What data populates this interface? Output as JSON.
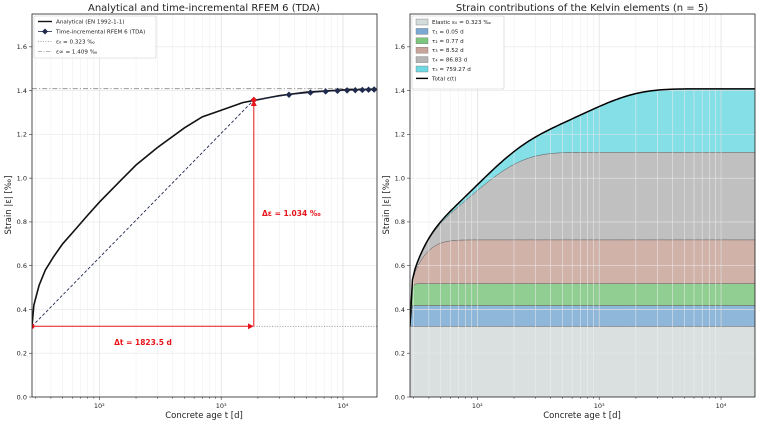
{
  "chart_data": [
    {
      "type": "line",
      "title": "Analytical and time-incremental RFEM 6 (TDA)",
      "xlabel": "Concrete age  t  [d]",
      "ylabel": "Strain  |ε|  [‰]",
      "xscale": "log",
      "xlim": [
        28,
        19000
      ],
      "ylim": [
        0.0,
        1.75
      ],
      "grid": true,
      "legend_position": "top-left",
      "x_tick_labels": [
        "10²",
        "10³",
        "10⁴"
      ],
      "y_tick_labels": [
        "0.0",
        "0.2",
        "0.4",
        "0.6",
        "0.8",
        "1.0",
        "1.2",
        "1.4",
        "1.6"
      ],
      "series": [
        {
          "name": "Analytical (EN 1992-1-1)",
          "style": "solid",
          "color": "#111111",
          "x": [
            28,
            29,
            32,
            36,
            42,
            50,
            60,
            80,
            100,
            150,
            200,
            300,
            500,
            700,
            1000,
            1500,
            1852,
            3000,
            5000,
            10000,
            19000
          ],
          "y": [
            0.323,
            0.42,
            0.51,
            0.58,
            0.64,
            0.7,
            0.75,
            0.83,
            0.89,
            0.99,
            1.06,
            1.14,
            1.23,
            1.28,
            1.31,
            1.345,
            1.355,
            1.377,
            1.393,
            1.403,
            1.406
          ]
        },
        {
          "name": "Time-incremental RFEM 6 (TDA)",
          "style": "markers",
          "color": "#1f2a4d",
          "x": [
            1852,
            3600,
            5400,
            7200,
            9000,
            10800,
            12600,
            14400,
            16200,
            18000
          ],
          "y": [
            1.357,
            1.381,
            1.391,
            1.396,
            1.399,
            1.401,
            1.402,
            1.403,
            1.404,
            1.405
          ]
        },
        {
          "name": "ε₀ = 0.323 ‰",
          "style": "dotted",
          "color": "#888888",
          "value": 0.323
        },
        {
          "name": "ε∞ = 1.409 ‰",
          "style": "dashdot",
          "color": "#999999",
          "value": 1.409
        }
      ],
      "annotations": [
        {
          "text": "Δε = 1.034 ‰",
          "color": "#e8141b"
        },
        {
          "text": "Δt = 1823.5 d",
          "color": "#e8141b"
        }
      ]
    },
    {
      "type": "area",
      "title": "Strain contributions of the Kelvin elements (n = 5)",
      "xlabel": "Concrete age  t  [d]",
      "ylabel": "Strain  |ε|  [‰]",
      "xscale": "log",
      "xlim": [
        28,
        19000
      ],
      "ylim": [
        0.0,
        1.75
      ],
      "grid": true,
      "legend_position": "top-left",
      "x_tick_labels": [
        "10²",
        "10³",
        "10⁴"
      ],
      "y_tick_labels": [
        "0.0",
        "0.2",
        "0.4",
        "0.6",
        "0.8",
        "1.0",
        "1.2",
        "1.4",
        "1.6"
      ],
      "series": [
        {
          "name": "Elastic ε₀ = 0.323 ‰",
          "color": "#d3dbdb",
          "amplitude": 0.323,
          "tau": 0
        },
        {
          "name": "τ₁ = 0.05 d",
          "color": "#7aaad4",
          "amplitude": 0.095,
          "tau": 0.05
        },
        {
          "name": "τ₂ = 0.77 d",
          "color": "#7cc77e",
          "amplitude": 0.1,
          "tau": 0.77
        },
        {
          "name": "τ₃ = 8.52 d",
          "color": "#c9a49a",
          "amplitude": 0.2,
          "tau": 8.52
        },
        {
          "name": "τ₄ = 86.83 d",
          "color": "#b5b5b5",
          "amplitude": 0.4,
          "tau": 86.83
        },
        {
          "name": "τ₅ = 759.27 d",
          "color": "#6fd9e3",
          "amplitude": 0.29,
          "tau": 759.27
        },
        {
          "name": "Total ε(t)",
          "color": "#000000",
          "style": "line"
        }
      ]
    }
  ]
}
